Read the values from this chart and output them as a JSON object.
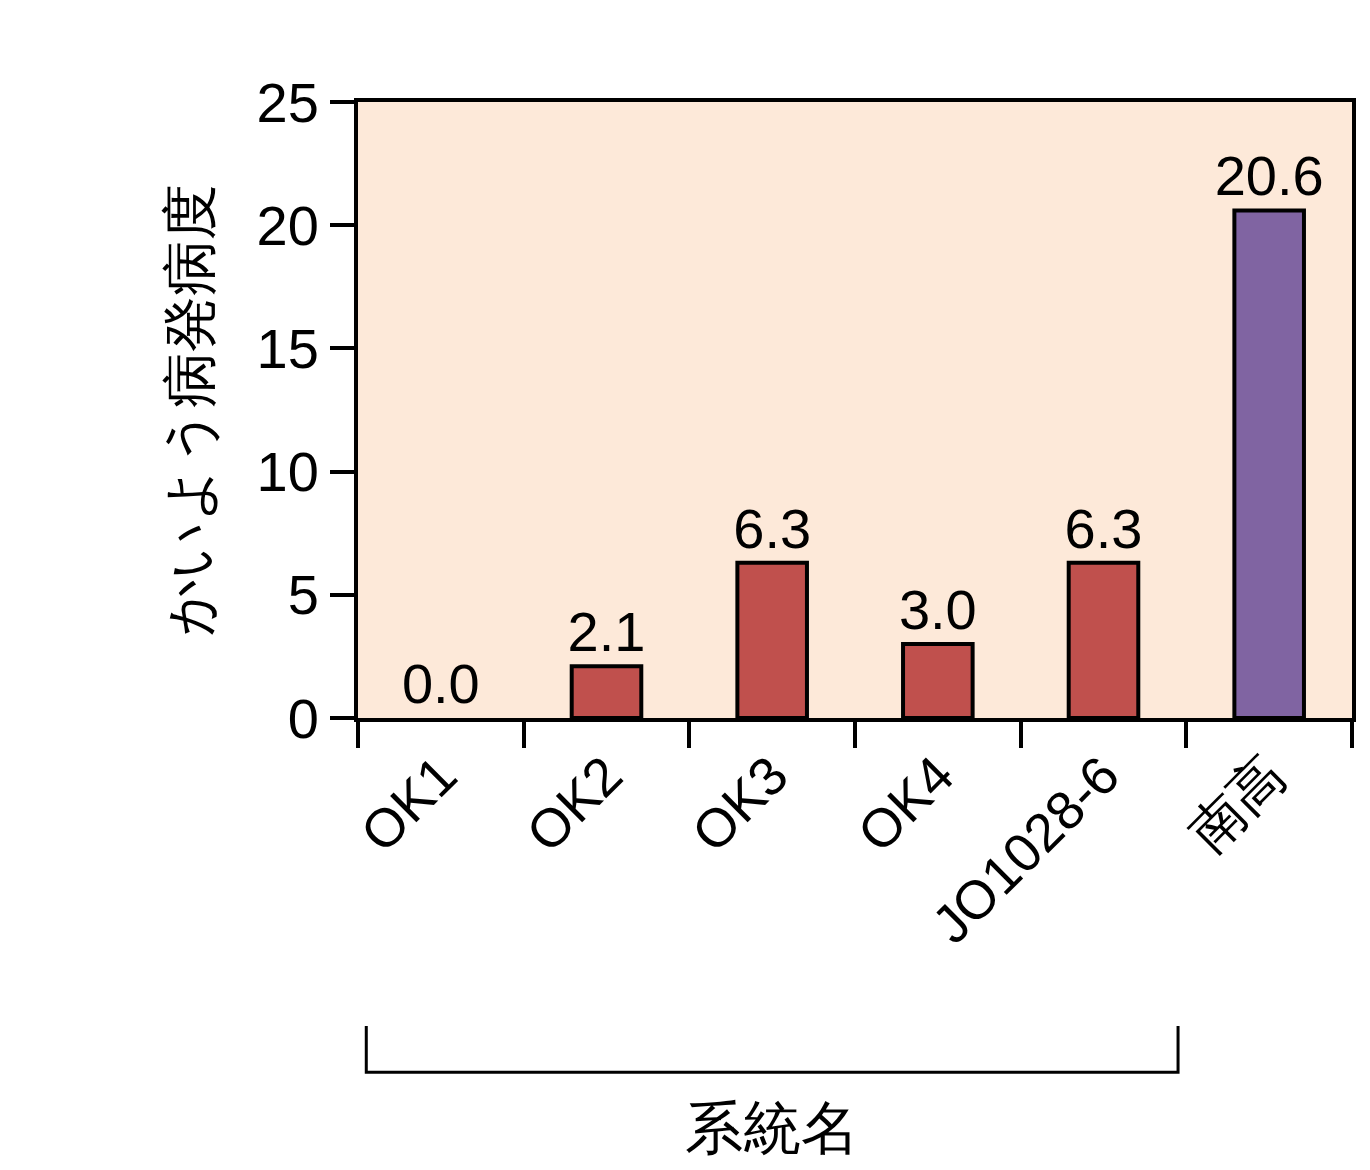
{
  "chart_data": {
    "type": "bar",
    "xlabel": "系統名",
    "ylabel": "かいよう病発病度",
    "categories": [
      "OK1",
      "OK2",
      "OK3",
      "OK4",
      "JO1028-6",
      "南高"
    ],
    "values": [
      0.0,
      2.1,
      6.3,
      3.0,
      6.3,
      20.6
    ],
    "colors": [
      "#c0504d",
      "#c0504d",
      "#c0504d",
      "#c0504d",
      "#c0504d",
      "#8064a2"
    ],
    "value_labels": [
      "0.0",
      "2.1",
      "6.3",
      "3.0",
      "6.3",
      "20.6"
    ],
    "ylim": [
      0,
      25
    ],
    "yticks": [
      0,
      5,
      10,
      15,
      20,
      25
    ],
    "grid": false,
    "legend": false
  }
}
